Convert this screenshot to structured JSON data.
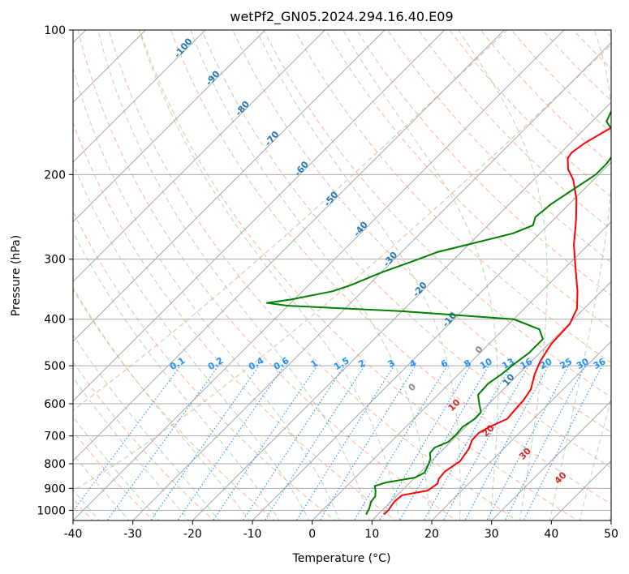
{
  "chart_data": {
    "type": "skew-t log-p diagram",
    "title": "wetPf2_GN05.2024.294.16.40.E09",
    "xlabel": "Temperature (°C)",
    "ylabel": "Pressure (hPa)",
    "xlim": [
      -40,
      50
    ],
    "ylim_hpa": [
      1050,
      100
    ],
    "x_ticks": [
      "-40",
      "-30",
      "-20",
      "-10",
      "0",
      "10",
      "20",
      "30",
      "40",
      "50"
    ],
    "y_ticks": [
      {
        "p": 1000,
        "label": "1000"
      },
      {
        "p": 900,
        "label": "900"
      },
      {
        "p": 800,
        "label": "800"
      },
      {
        "p": 700,
        "label": "700"
      },
      {
        "p": 600,
        "label": "600"
      },
      {
        "p": 500,
        "label": "500"
      },
      {
        "p": 400,
        "label": "400"
      },
      {
        "p": 300,
        "label": "300"
      },
      {
        "p": 200,
        "label": "200"
      },
      {
        "p": 100,
        "label": "100"
      }
    ],
    "grid": true,
    "series": [
      {
        "name": "temperature",
        "color": "#ff0000",
        "points": [
          {
            "p": 1020,
            "t": 11.0
          },
          {
            "p": 1000,
            "t": 11.0
          },
          {
            "p": 960,
            "t": 10.6
          },
          {
            "p": 930,
            "t": 10.8
          },
          {
            "p": 920,
            "t": 12.5
          },
          {
            "p": 910,
            "t": 14.3
          },
          {
            "p": 880,
            "t": 14.8
          },
          {
            "p": 860,
            "t": 14.2
          },
          {
            "p": 830,
            "t": 14.0
          },
          {
            "p": 790,
            "t": 14.8
          },
          {
            "p": 745,
            "t": 14.2
          },
          {
            "p": 715,
            "t": 13.3
          },
          {
            "p": 690,
            "t": 13.2
          },
          {
            "p": 670,
            "t": 14.0
          },
          {
            "p": 645,
            "t": 15.6
          },
          {
            "p": 620,
            "t": 15.4
          },
          {
            "p": 590,
            "t": 15.2
          },
          {
            "p": 560,
            "t": 14.6
          },
          {
            "p": 520,
            "t": 12.7
          },
          {
            "p": 490,
            "t": 11.5
          },
          {
            "p": 450,
            "t": 10.4
          },
          {
            "p": 410,
            "t": 10.2
          },
          {
            "p": 380,
            "t": 8.8
          },
          {
            "p": 350,
            "t": 6.0
          },
          {
            "p": 310,
            "t": 1.4
          },
          {
            "p": 280,
            "t": -2.4
          },
          {
            "p": 250,
            "t": -6.0
          },
          {
            "p": 225,
            "t": -9.6
          },
          {
            "p": 205,
            "t": -13.4
          },
          {
            "p": 195,
            "t": -16.0
          },
          {
            "p": 185,
            "t": -17.9
          },
          {
            "p": 180,
            "t": -18.2
          },
          {
            "p": 172,
            "t": -17.6
          },
          {
            "p": 160,
            "t": -15.8
          },
          {
            "p": 150,
            "t": -14.7
          },
          {
            "p": 140,
            "t": -14.1
          },
          {
            "p": 130,
            "t": -15.3
          },
          {
            "p": 125,
            "t": -16.5
          },
          {
            "p": 118,
            "t": -17.3
          },
          {
            "p": 105,
            "t": -18.9
          },
          {
            "p": 100,
            "t": -19.6
          }
        ]
      },
      {
        "name": "dewpoint",
        "color": "#008000",
        "points": [
          {
            "p": 1020,
            "t": 8.0
          },
          {
            "p": 990,
            "t": 7.5
          },
          {
            "p": 960,
            "t": 6.7
          },
          {
            "p": 935,
            "t": 6.5
          },
          {
            "p": 910,
            "t": 5.6
          },
          {
            "p": 890,
            "t": 4.7
          },
          {
            "p": 875,
            "t": 6.0
          },
          {
            "p": 855,
            "t": 10.0
          },
          {
            "p": 835,
            "t": 10.8
          },
          {
            "p": 800,
            "t": 10.0
          },
          {
            "p": 780,
            "t": 9.4
          },
          {
            "p": 760,
            "t": 8.4
          },
          {
            "p": 740,
            "t": 8.3
          },
          {
            "p": 720,
            "t": 9.6
          },
          {
            "p": 695,
            "t": 9.7
          },
          {
            "p": 670,
            "t": 9.5
          },
          {
            "p": 645,
            "t": 10.2
          },
          {
            "p": 625,
            "t": 10.1
          },
          {
            "p": 600,
            "t": 8.4
          },
          {
            "p": 575,
            "t": 6.7
          },
          {
            "p": 545,
            "t": 6.5
          },
          {
            "p": 520,
            "t": 7.2
          },
          {
            "p": 495,
            "t": 7.6
          },
          {
            "p": 470,
            "t": 8.2
          },
          {
            "p": 440,
            "t": 8.2
          },
          {
            "p": 420,
            "t": 6.0
          },
          {
            "p": 400,
            "t": 0.0
          },
          {
            "p": 385,
            "t": -20.0
          },
          {
            "p": 375,
            "t": -40.0
          },
          {
            "p": 370,
            "t": -44.0
          },
          {
            "p": 364,
            "t": -40.5
          },
          {
            "p": 350,
            "t": -35.0
          },
          {
            "p": 340,
            "t": -33.0
          },
          {
            "p": 320,
            "t": -30.0
          },
          {
            "p": 300,
            "t": -26.0
          },
          {
            "p": 290,
            "t": -24.0
          },
          {
            "p": 278,
            "t": -19.5
          },
          {
            "p": 265,
            "t": -14.5
          },
          {
            "p": 255,
            "t": -12.5
          },
          {
            "p": 245,
            "t": -13.5
          },
          {
            "p": 230,
            "t": -13.0
          },
          {
            "p": 215,
            "t": -11.8
          },
          {
            "p": 200,
            "t": -10.5
          },
          {
            "p": 190,
            "t": -10.5
          },
          {
            "p": 180,
            "t": -11.0
          },
          {
            "p": 172,
            "t": -12.2
          },
          {
            "p": 165,
            "t": -14.0
          },
          {
            "p": 155,
            "t": -17.6
          },
          {
            "p": 140,
            "t": -19.5
          },
          {
            "p": 130,
            "t": -20.2
          },
          {
            "p": 120,
            "t": -20.0
          },
          {
            "p": 110,
            "t": -19.2
          },
          {
            "p": 100,
            "t": -18.6
          }
        ]
      }
    ],
    "dry_adiabat_labels": [
      "-100",
      "-90",
      "-80",
      "-70",
      "-60",
      "-50",
      "-40",
      "-30",
      "-20",
      "-10",
      "0",
      "10"
    ],
    "moist_adiabat_labels": [
      "0",
      "10",
      "20",
      "30",
      "40"
    ],
    "mixing_ratio_labels": [
      "0.1",
      "0.2",
      "0.4",
      "0.6",
      "1",
      "1.5",
      "2",
      "3",
      "4",
      "6",
      "8",
      "10",
      "13",
      "16",
      "20",
      "25",
      "30",
      "36"
    ],
    "colors": {
      "isotherm": "#9e9e9e",
      "isobar": "#aaaaaa",
      "dry_adiabat": "#f4a582",
      "moist_adiabat": "#8fc98f",
      "mixing_ratio": "#1e90ff",
      "dry_label": "#1f77b4",
      "moist_label": "#d62728",
      "theta_e": "#d9b99b"
    }
  }
}
